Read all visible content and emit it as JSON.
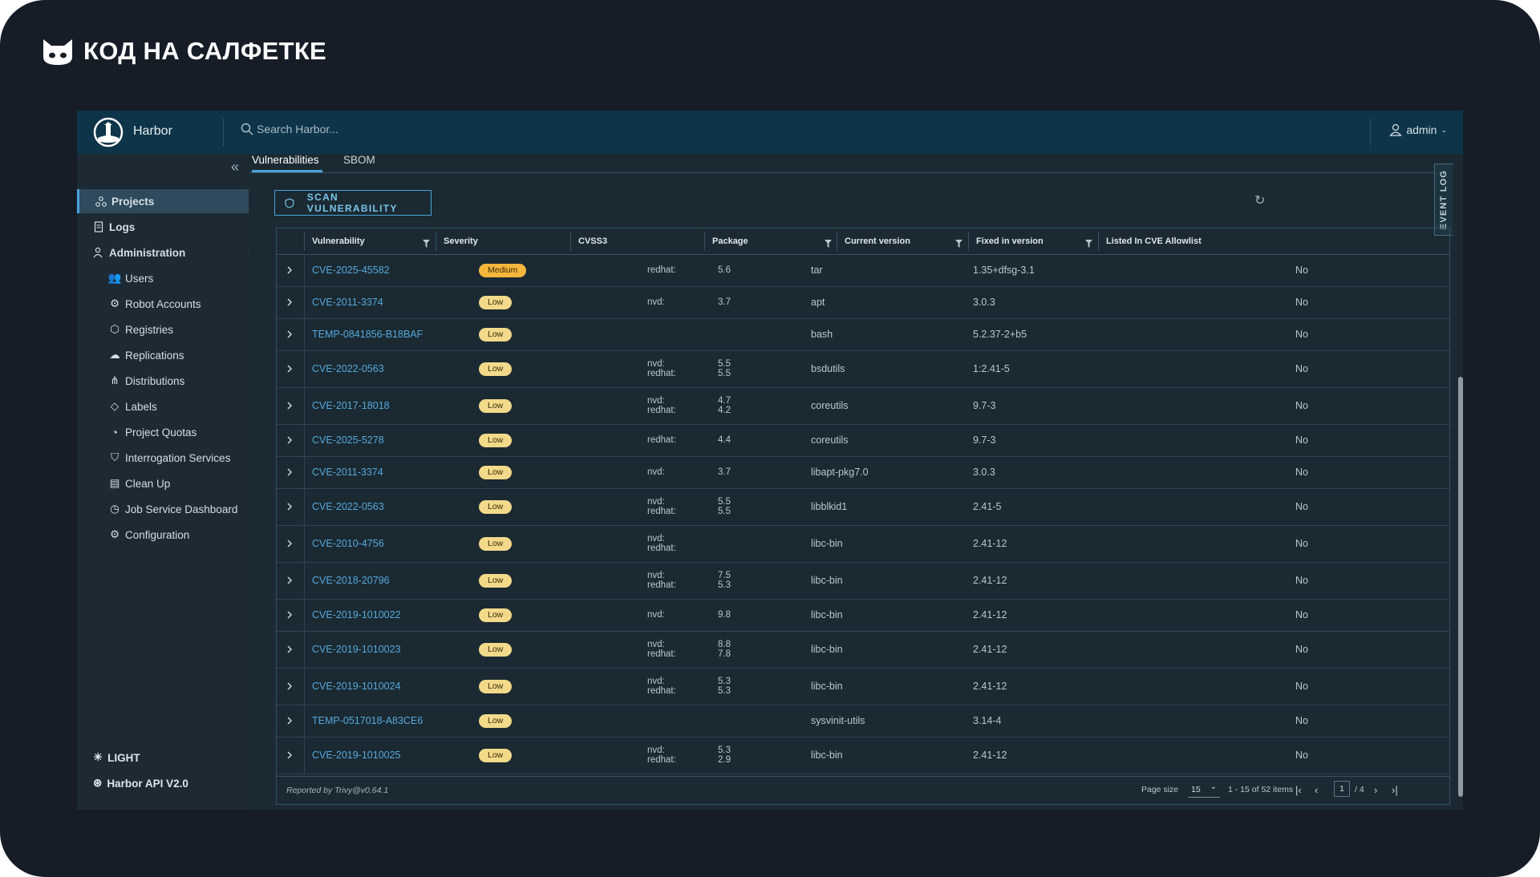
{
  "brand": {
    "text": "КОД НА САЛФЕТКЕ"
  },
  "header": {
    "app_name": "Harbor",
    "search_placeholder": "Search Harbor...",
    "user": "admin"
  },
  "sidebar": {
    "items": [
      {
        "label": "Projects",
        "icon": "projects-icon"
      },
      {
        "label": "Logs",
        "icon": "logs-icon"
      },
      {
        "label": "Administration",
        "icon": "admin-icon"
      }
    ],
    "admin_items": [
      {
        "label": "Users",
        "icon": "users-icon"
      },
      {
        "label": "Robot Accounts",
        "icon": "robot-icon"
      },
      {
        "label": "Registries",
        "icon": "registries-icon"
      },
      {
        "label": "Replications",
        "icon": "replications-icon"
      },
      {
        "label": "Distributions",
        "icon": "distributions-icon"
      },
      {
        "label": "Labels",
        "icon": "labels-icon"
      },
      {
        "label": "Project Quotas",
        "icon": "quotas-icon"
      },
      {
        "label": "Interrogation Services",
        "icon": "shield-icon"
      },
      {
        "label": "Clean Up",
        "icon": "trash-icon"
      },
      {
        "label": "Job Service Dashboard",
        "icon": "dashboard-icon"
      },
      {
        "label": "Configuration",
        "icon": "gear-icon"
      }
    ],
    "theme_toggle": "LIGHT",
    "api_link": "Harbor API V2.0"
  },
  "tabs": [
    "Vulnerabilities",
    "SBOM"
  ],
  "scan_button": "SCAN VULNERABILITY",
  "event_log": "EVENT LOG",
  "table": {
    "columns": [
      "Vulnerability",
      "Severity",
      "CVSS3",
      "Package",
      "Current version",
      "Fixed in version",
      "Listed In CVE Allowlist"
    ],
    "rows": [
      {
        "id": "CVE-2025-45582",
        "severity": "Medium",
        "src": [
          "redhat:"
        ],
        "scores": [
          "5.6"
        ],
        "pkg": "tar",
        "cur": "1.35+dfsg-3.1",
        "allow": "No"
      },
      {
        "id": "CVE-2011-3374",
        "severity": "Low",
        "src": [
          "nvd:"
        ],
        "scores": [
          "3.7"
        ],
        "pkg": "apt",
        "cur": "3.0.3",
        "allow": "No"
      },
      {
        "id": "TEMP-0841856-B18BAF",
        "severity": "Low",
        "src": [],
        "scores": [],
        "pkg": "bash",
        "cur": "5.2.37-2+b5",
        "allow": "No"
      },
      {
        "id": "CVE-2022-0563",
        "severity": "Low",
        "src": [
          "nvd:",
          "redhat:"
        ],
        "scores": [
          "5.5",
          "5.5"
        ],
        "pkg": "bsdutils",
        "cur": "1:2.41-5",
        "allow": "No"
      },
      {
        "id": "CVE-2017-18018",
        "severity": "Low",
        "src": [
          "nvd:",
          "redhat:"
        ],
        "scores": [
          "4.7",
          "4.2"
        ],
        "pkg": "coreutils",
        "cur": "9.7-3",
        "allow": "No"
      },
      {
        "id": "CVE-2025-5278",
        "severity": "Low",
        "src": [
          "redhat:"
        ],
        "scores": [
          "4.4"
        ],
        "pkg": "coreutils",
        "cur": "9.7-3",
        "allow": "No"
      },
      {
        "id": "CVE-2011-3374",
        "severity": "Low",
        "src": [
          "nvd:"
        ],
        "scores": [
          "3.7"
        ],
        "pkg": "libapt-pkg7.0",
        "cur": "3.0.3",
        "allow": "No"
      },
      {
        "id": "CVE-2022-0563",
        "severity": "Low",
        "src": [
          "nvd:",
          "redhat:"
        ],
        "scores": [
          "5.5",
          "5.5"
        ],
        "pkg": "libblkid1",
        "cur": "2.41-5",
        "allow": "No"
      },
      {
        "id": "CVE-2010-4756",
        "severity": "Low",
        "src": [
          "nvd:",
          "redhat:"
        ],
        "scores": [],
        "pkg": "libc-bin",
        "cur": "2.41-12",
        "allow": "No"
      },
      {
        "id": "CVE-2018-20796",
        "severity": "Low",
        "src": [
          "nvd:",
          "redhat:"
        ],
        "scores": [
          "7.5",
          "5.3"
        ],
        "pkg": "libc-bin",
        "cur": "2.41-12",
        "allow": "No"
      },
      {
        "id": "CVE-2019-1010022",
        "severity": "Low",
        "src": [
          "nvd:"
        ],
        "scores": [
          "9.8"
        ],
        "pkg": "libc-bin",
        "cur": "2.41-12",
        "allow": "No"
      },
      {
        "id": "CVE-2019-1010023",
        "severity": "Low",
        "src": [
          "nvd:",
          "redhat:"
        ],
        "scores": [
          "8.8",
          "7.8"
        ],
        "pkg": "libc-bin",
        "cur": "2.41-12",
        "allow": "No"
      },
      {
        "id": "CVE-2019-1010024",
        "severity": "Low",
        "src": [
          "nvd:",
          "redhat:"
        ],
        "scores": [
          "5.3",
          "5.3"
        ],
        "pkg": "libc-bin",
        "cur": "2.41-12",
        "allow": "No"
      },
      {
        "id": "TEMP-0517018-A83CE6",
        "severity": "Low",
        "src": [],
        "scores": [],
        "pkg": "sysvinit-utils",
        "cur": "3.14-4",
        "allow": "No"
      },
      {
        "id": "CVE-2019-1010025",
        "severity": "Low",
        "src": [
          "nvd:",
          "redhat:"
        ],
        "scores": [
          "5.3",
          "2.9"
        ],
        "pkg": "libc-bin",
        "cur": "2.41-12",
        "allow": "No"
      }
    ]
  },
  "footer": {
    "reported_by": "Reported by Trivy@v0.64.1",
    "page_size_label": "Page size",
    "page_size": "15",
    "range": "1 - 15 of 52 items",
    "current_page": "1",
    "total_pages": "/ 4"
  },
  "colors": {
    "accent": "#4aa3da",
    "link": "#55a8dc",
    "badge_low": "#f3d98a",
    "badge_medium": "#f6b73c"
  }
}
